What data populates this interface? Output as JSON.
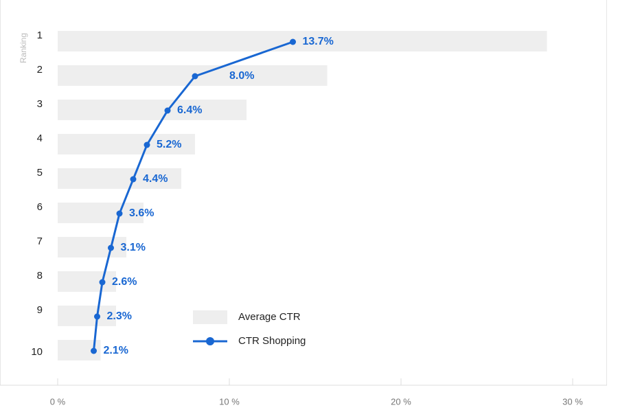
{
  "chart_data": {
    "type": "bar",
    "orientation": "horizontal",
    "y_label": "Ranking",
    "categories": [
      "1",
      "2",
      "3",
      "4",
      "5",
      "6",
      "7",
      "8",
      "9",
      "10"
    ],
    "series": [
      {
        "name": "Average CTR",
        "type": "bar",
        "color": "#eeeeee",
        "values": [
          28.5,
          15.7,
          11.0,
          8.0,
          7.2,
          5.0,
          4.0,
          3.4,
          3.4,
          2.5
        ]
      },
      {
        "name": "CTR Shopping",
        "type": "line",
        "color": "#1967d2",
        "values": [
          13.7,
          8.0,
          6.4,
          5.2,
          4.4,
          3.6,
          3.1,
          2.6,
          2.3,
          2.1
        ],
        "value_labels": [
          "13.7%",
          "8.0%",
          "6.4%",
          "5.2%",
          "4.4%",
          "3.6%",
          "3.1%",
          "2.6%",
          "2.3%",
          "2.1%"
        ]
      }
    ],
    "xlim": [
      0,
      30
    ],
    "xticks": [
      {
        "value": 0,
        "label": "0 %"
      },
      {
        "value": 10,
        "label": "10 %"
      },
      {
        "value": 20,
        "label": "20 %"
      },
      {
        "value": 30,
        "label": "30 %"
      }
    ],
    "legend": "lower center"
  }
}
